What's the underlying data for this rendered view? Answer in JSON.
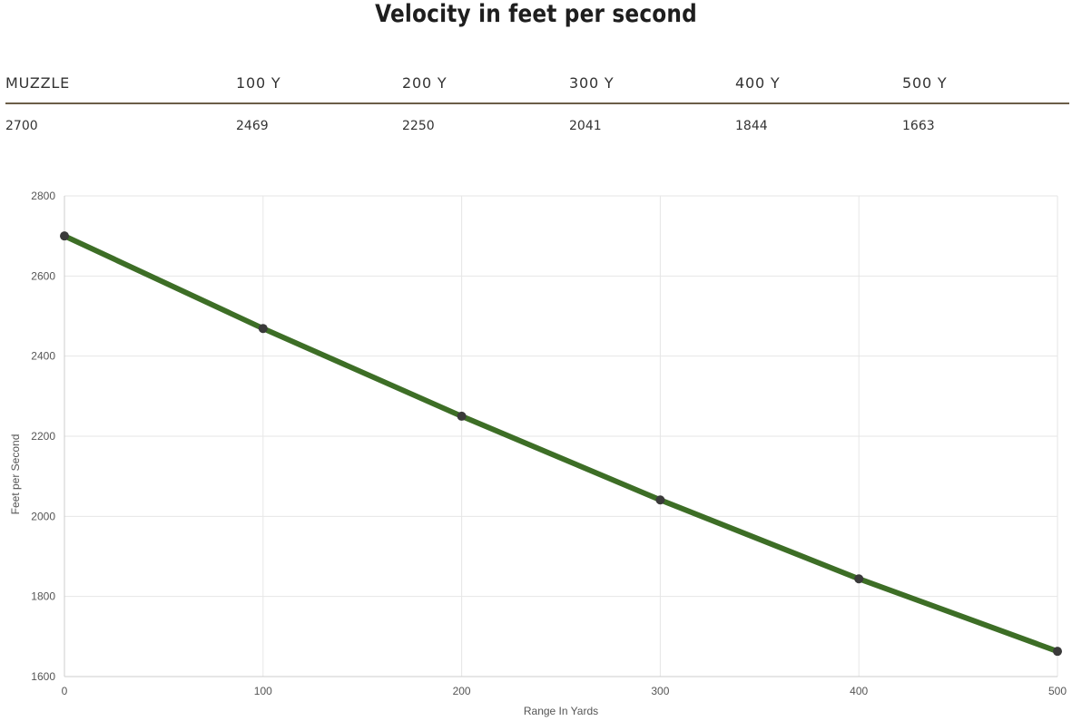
{
  "title": "Velocity in feet per second",
  "table": {
    "headers": [
      "MUZZLE",
      "100 Y",
      "200 Y",
      "300 Y",
      "400 Y",
      "500 Y"
    ],
    "values": [
      "2700",
      "2469",
      "2250",
      "2041",
      "1844",
      "1663"
    ]
  },
  "colors": {
    "line": "#3d6e26",
    "marker": "#3a3a3a",
    "grid": "#e6e6e6",
    "table_rule": "#6b5e48"
  },
  "chart_data": {
    "type": "line",
    "title": "",
    "xlabel": "Range In Yards",
    "ylabel": "Feet per Second",
    "x": [
      0,
      100,
      200,
      300,
      400,
      500
    ],
    "series": [
      {
        "values": [
          2700,
          2469,
          2250,
          2041,
          1844,
          1663
        ]
      }
    ],
    "xlim": [
      0,
      500
    ],
    "ylim": [
      1600,
      2800
    ],
    "xticks": [
      0,
      100,
      200,
      300,
      400,
      500
    ],
    "yticks": [
      1600,
      1800,
      2000,
      2200,
      2400,
      2600,
      2800
    ],
    "grid": true,
    "legend": "none"
  }
}
